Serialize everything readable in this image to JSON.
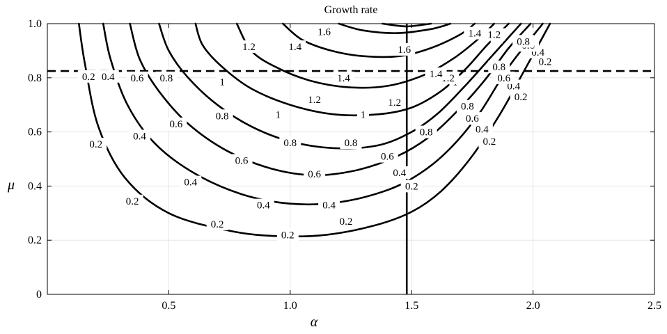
{
  "chart_data": {
    "type": "contour",
    "title": "Growth rate",
    "xlabel": "α",
    "ylabel": "μ",
    "xlim": [
      0,
      2.5
    ],
    "ylim": [
      0,
      1.0
    ],
    "xticks": [
      0.5,
      1.0,
      1.5,
      2.0,
      2.5
    ],
    "xtick_labels": [
      "0.5",
      "1.0",
      "1.5",
      "2.0",
      "2.5"
    ],
    "yticks": [
      0,
      0.2,
      0.4,
      0.6,
      0.8,
      1.0
    ],
    "ytick_labels": [
      "0",
      "0.2",
      "0.4",
      "0.6",
      "0.8",
      "1.0"
    ],
    "grid": true,
    "reference_lines": [
      {
        "orientation": "horizontal",
        "y": 0.825,
        "style": "dashed"
      },
      {
        "orientation": "vertical",
        "x": 1.48,
        "style": "solid"
      }
    ],
    "contours": [
      {
        "level": "0.2",
        "points": [
          [
            0.13,
            1.0
          ],
          [
            0.155,
            0.85
          ],
          [
            0.21,
            0.62
          ],
          [
            0.32,
            0.43
          ],
          [
            0.5,
            0.3
          ],
          [
            0.75,
            0.235
          ],
          [
            0.95,
            0.215
          ],
          [
            1.15,
            0.22
          ],
          [
            1.35,
            0.255
          ],
          [
            1.5,
            0.305
          ],
          [
            1.62,
            0.38
          ],
          [
            1.74,
            0.5
          ],
          [
            1.86,
            0.66
          ],
          [
            1.96,
            0.82
          ],
          [
            2.07,
            1.0
          ]
        ],
        "labels": [
          {
            "x": 0.17,
            "y": 0.805
          },
          {
            "x": 0.2,
            "y": 0.555
          },
          {
            "x": 0.35,
            "y": 0.345
          },
          {
            "x": 0.7,
            "y": 0.26
          },
          {
            "x": 0.99,
            "y": 0.22
          },
          {
            "x": 1.23,
            "y": 0.27
          },
          {
            "x": 1.5,
            "y": 0.4
          },
          {
            "x": 1.82,
            "y": 0.565
          },
          {
            "x": 1.95,
            "y": 0.73
          },
          {
            "x": 2.05,
            "y": 0.86
          }
        ]
      },
      {
        "level": "0.4",
        "points": [
          [
            0.23,
            1.0
          ],
          [
            0.26,
            0.87
          ],
          [
            0.33,
            0.7
          ],
          [
            0.44,
            0.56
          ],
          [
            0.6,
            0.45
          ],
          [
            0.8,
            0.37
          ],
          [
            1.0,
            0.335
          ],
          [
            1.2,
            0.34
          ],
          [
            1.4,
            0.385
          ],
          [
            1.54,
            0.45
          ],
          [
            1.66,
            0.54
          ],
          [
            1.78,
            0.67
          ],
          [
            1.9,
            0.84
          ],
          [
            2.04,
            1.0
          ]
        ],
        "labels": [
          {
            "x": 0.25,
            "y": 0.805
          },
          {
            "x": 0.38,
            "y": 0.585
          },
          {
            "x": 0.59,
            "y": 0.415
          },
          {
            "x": 0.89,
            "y": 0.33
          },
          {
            "x": 1.16,
            "y": 0.33
          },
          {
            "x": 1.45,
            "y": 0.45
          },
          {
            "x": 1.79,
            "y": 0.61
          },
          {
            "x": 1.92,
            "y": 0.77
          },
          {
            "x": 2.02,
            "y": 0.895
          }
        ]
      },
      {
        "level": "0.6",
        "points": [
          [
            0.34,
            1.0
          ],
          [
            0.38,
            0.87
          ],
          [
            0.46,
            0.75
          ],
          [
            0.58,
            0.63
          ],
          [
            0.74,
            0.53
          ],
          [
            0.92,
            0.465
          ],
          [
            1.1,
            0.44
          ],
          [
            1.28,
            0.46
          ],
          [
            1.44,
            0.51
          ],
          [
            1.57,
            0.58
          ],
          [
            1.68,
            0.67
          ],
          [
            1.8,
            0.79
          ],
          [
            1.9,
            0.91
          ],
          [
            1.99,
            1.0
          ]
        ],
        "labels": [
          {
            "x": 0.37,
            "y": 0.8
          },
          {
            "x": 0.53,
            "y": 0.63
          },
          {
            "x": 0.8,
            "y": 0.495
          },
          {
            "x": 1.1,
            "y": 0.445
          },
          {
            "x": 1.4,
            "y": 0.51
          },
          {
            "x": 1.75,
            "y": 0.65
          },
          {
            "x": 1.88,
            "y": 0.8
          },
          {
            "x": 1.98,
            "y": 0.92
          }
        ]
      },
      {
        "level": "0.8",
        "points": [
          [
            0.46,
            1.0
          ],
          [
            0.5,
            0.9
          ],
          [
            0.58,
            0.8
          ],
          [
            0.7,
            0.7
          ],
          [
            0.84,
            0.62
          ],
          [
            1.0,
            0.565
          ],
          [
            1.18,
            0.54
          ],
          [
            1.36,
            0.55
          ],
          [
            1.5,
            0.6
          ],
          [
            1.61,
            0.67
          ],
          [
            1.72,
            0.77
          ],
          [
            1.83,
            0.88
          ],
          [
            1.95,
            1.0
          ]
        ],
        "labels": [
          {
            "x": 0.49,
            "y": 0.8
          },
          {
            "x": 0.72,
            "y": 0.66
          },
          {
            "x": 1.0,
            "y": 0.56
          },
          {
            "x": 1.25,
            "y": 0.56
          },
          {
            "x": 1.56,
            "y": 0.6
          },
          {
            "x": 1.73,
            "y": 0.695
          },
          {
            "x": 1.86,
            "y": 0.84
          },
          {
            "x": 1.96,
            "y": 0.935
          }
        ]
      },
      {
        "level": "1",
        "points": [
          [
            0.61,
            1.0
          ],
          [
            0.64,
            0.92
          ],
          [
            0.72,
            0.84
          ],
          [
            0.84,
            0.76
          ],
          [
            1.0,
            0.7
          ],
          [
            1.18,
            0.665
          ],
          [
            1.36,
            0.665
          ],
          [
            1.5,
            0.69
          ],
          [
            1.62,
            0.75
          ],
          [
            1.72,
            0.83
          ],
          [
            1.81,
            0.92
          ],
          [
            1.9,
            1.0
          ]
        ],
        "labels": [
          {
            "x": 0.72,
            "y": 0.785
          },
          {
            "x": 0.95,
            "y": 0.665
          },
          {
            "x": 1.3,
            "y": 0.665
          },
          {
            "x": 1.68,
            "y": 0.785
          },
          {
            "x": 1.85,
            "y": 0.95
          }
        ]
      },
      {
        "level": "1.2",
        "points": [
          [
            0.78,
            1.0
          ],
          [
            0.84,
            0.9
          ],
          [
            0.94,
            0.84
          ],
          [
            1.08,
            0.79
          ],
          [
            1.24,
            0.765
          ],
          [
            1.4,
            0.77
          ],
          [
            1.55,
            0.81
          ],
          [
            1.67,
            0.87
          ],
          [
            1.77,
            0.94
          ],
          [
            1.84,
            1.0
          ]
        ],
        "labels": [
          {
            "x": 0.83,
            "y": 0.915
          },
          {
            "x": 1.1,
            "y": 0.72
          },
          {
            "x": 1.43,
            "y": 0.71
          },
          {
            "x": 1.65,
            "y": 0.8
          },
          {
            "x": 1.84,
            "y": 0.96
          }
        ]
      },
      {
        "level": "1.4",
        "points": [
          [
            0.97,
            1.0
          ],
          [
            1.05,
            0.94
          ],
          [
            1.17,
            0.9
          ],
          [
            1.3,
            0.88
          ],
          [
            1.45,
            0.88
          ],
          [
            1.58,
            0.91
          ],
          [
            1.7,
            0.96
          ],
          [
            1.76,
            1.0
          ]
        ],
        "labels": [
          {
            "x": 1.02,
            "y": 0.915
          },
          {
            "x": 1.22,
            "y": 0.8
          },
          {
            "x": 1.6,
            "y": 0.815
          },
          {
            "x": 1.76,
            "y": 0.965
          }
        ]
      },
      {
        "level": "1.6",
        "points": [
          [
            1.2,
            1.0
          ],
          [
            1.3,
            0.975
          ],
          [
            1.44,
            0.965
          ],
          [
            1.58,
            0.98
          ],
          [
            1.66,
            1.0
          ]
        ],
        "labels": [
          {
            "x": 1.14,
            "y": 0.97
          },
          {
            "x": 1.47,
            "y": 0.905
          }
        ]
      },
      {
        "level": "",
        "points": [
          [
            1.38,
            1.0
          ],
          [
            1.48,
            0.99
          ],
          [
            1.58,
            1.0
          ]
        ],
        "labels": []
      }
    ]
  }
}
